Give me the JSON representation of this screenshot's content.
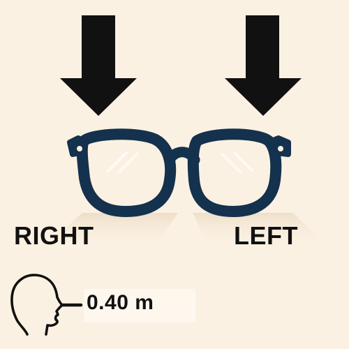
{
  "labels": {
    "right": "RIGHT",
    "left": "LEFT"
  },
  "distance": {
    "value_text": "0.40 m"
  },
  "icons": {
    "right_arrow": "down-arrow-icon",
    "left_arrow": "down-arrow-icon",
    "glasses": "glasses-icon",
    "head": "head-profile-icon",
    "distance_arrow": "right-arrow-icon"
  },
  "colors": {
    "background": "#fbf1e2",
    "frame": "#14314d",
    "text": "#111111"
  }
}
